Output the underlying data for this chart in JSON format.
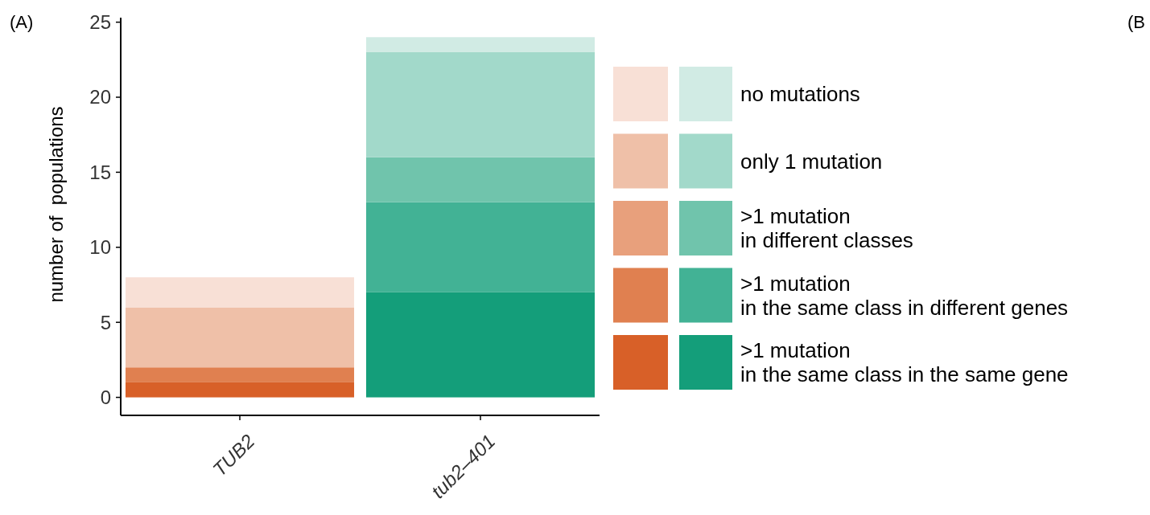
{
  "chart_data": {
    "type": "bar",
    "stacked": true,
    "ylabel": "number of  populations",
    "categories": [
      "TUB2",
      "tub2–401"
    ],
    "ylim": [
      -1.2,
      25.3
    ],
    "yticks": [
      0,
      5,
      10,
      15,
      20,
      25
    ],
    "legend": "right",
    "grid": false,
    "annotations": [
      "(A)",
      "(B"
    ],
    "series": [
      {
        "name": ">1 mutation\nin the same class in the same gene",
        "colors": [
          "#d86028",
          "#149e7a"
        ],
        "values": [
          1,
          7
        ]
      },
      {
        "name": ">1 mutation\nin the same class in different genes",
        "colors": [
          "#e08050",
          "#42b295"
        ],
        "values": [
          1,
          6
        ]
      },
      {
        "name": ">1 mutation\nin different classes",
        "colors": [
          "#e8a07c",
          "#70c4ac"
        ],
        "values": [
          0,
          3
        ]
      },
      {
        "name": "only 1 mutation",
        "colors": [
          "#efc0a8",
          "#a2d9ca"
        ],
        "values": [
          4,
          7
        ]
      },
      {
        "name": "no mutations",
        "colors": [
          "#f8e0d6",
          "#d1ebe4"
        ],
        "values": [
          2,
          1
        ]
      }
    ]
  }
}
